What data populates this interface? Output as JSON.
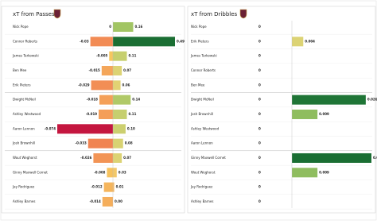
{
  "chart_data": [
    {
      "type": "bar",
      "title": "xT from Passes",
      "categories": [
        "Nick Pope",
        "Connor Roberts",
        "James  Tarkowski",
        "Ben Mee",
        "Erik Pieters",
        "Dwight McNeil",
        "Ashley Westwood",
        "Aaron  Lennon",
        "Josh Brownhill",
        "Wout Weghorst",
        "Ginny Maxwell Cornet",
        "Jay Rodriguez",
        "Ashley Barnes"
      ],
      "series": [
        {
          "values": [
            0,
            -0.03,
            -0.005,
            -0.015,
            -0.029,
            -0.018,
            -0.019,
            -0.074,
            -0.033,
            -0.026,
            -0.008,
            -0.012,
            -0.014
          ],
          "colors": [
            "#f6b25c",
            "#f28b54",
            "#f6c75f",
            "#f4a65a",
            "#f28e55",
            "#f4a058",
            "#f49e58",
            "#c4163f",
            "#f08452",
            "#f29455",
            "#f6c25e",
            "#f5b55c",
            "#f5ae5b"
          ]
        },
        {
          "values": [
            0.16,
            0.49,
            0.11,
            0.07,
            0.06,
            0.14,
            0.11,
            0.1,
            0.08,
            0.07,
            0.03,
            0.01,
            0
          ],
          "value_labels": [
            "0.16",
            "0.49",
            "0.11",
            "0.07",
            "0.06",
            "0.14",
            "0.11",
            "0.10",
            "0.08",
            "0.07",
            "0.03",
            "0.01",
            "0.00"
          ],
          "colors": [
            "#a2c564",
            "#1a6e33",
            "#c6cf6e",
            "#dcd374",
            "#e2d273",
            "#b0c967",
            "#c6cf6e",
            "#cccf6f",
            "#d8d272",
            "#dcd374",
            "#f2c86a",
            "#f6b85f",
            "#f4a65a"
          ]
        }
      ]
    },
    {
      "type": "bar",
      "title": "xT from Dribbles",
      "categories": [
        "Nick Pope",
        "Erik Pieters",
        "James  Tarkowski",
        "Connor Roberts",
        "Ben Mee",
        "Dwight McNeil",
        "Josh Brownhill",
        "Ashley Westwood",
        "Aaron  Lennon",
        "Ginny Maxwell Cornet",
        "Wout Weghorst",
        "Jay Rodriguez",
        "Ashley Barnes"
      ],
      "series": [
        {
          "values": [
            0,
            0,
            0,
            0,
            0,
            0,
            0,
            0,
            0,
            0,
            0,
            0,
            0
          ],
          "colors": [
            "#f4a65a",
            "#f4a65a",
            "#f4a65a",
            "#f4a65a",
            "#f4a65a",
            "#f4a65a",
            "#f4a65a",
            "#f4a65a",
            "#f4a65a",
            "#f4a65a",
            "#f4a65a",
            "#f4a65a",
            "#f4a65a"
          ]
        },
        {
          "values": [
            0,
            0.004,
            0,
            0,
            0,
            0.026,
            0.009,
            0,
            0,
            0.028,
            0.009,
            0,
            0
          ],
          "colors": [
            "#f4a65a",
            "#dcd374",
            "#f4a65a",
            "#f4a65a",
            "#f4a65a",
            "#1f7536",
            "#8fbd5f",
            "#f4a65a",
            "#f4a65a",
            "#1a6e33",
            "#8fbd5f",
            "#f4a65a",
            "#f4a65a"
          ]
        }
      ]
    }
  ]
}
